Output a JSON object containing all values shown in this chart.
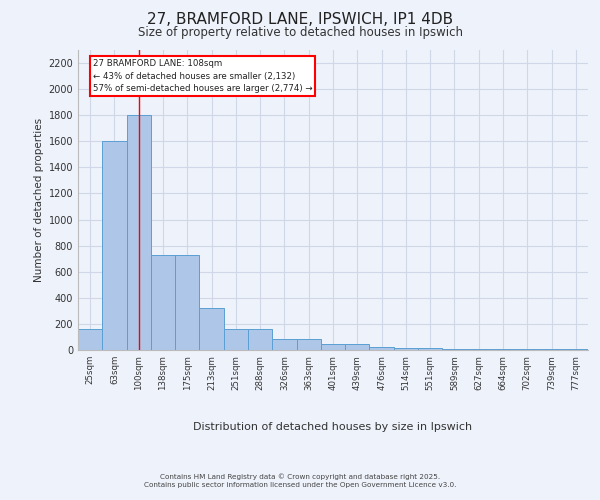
{
  "title": "27, BRAMFORD LANE, IPSWICH, IP1 4DB",
  "subtitle": "Size of property relative to detached houses in Ipswich",
  "xlabel": "Distribution of detached houses by size in Ipswich",
  "ylabel": "Number of detached properties",
  "categories": [
    "25sqm",
    "63sqm",
    "100sqm",
    "138sqm",
    "175sqm",
    "213sqm",
    "251sqm",
    "288sqm",
    "326sqm",
    "363sqm",
    "401sqm",
    "439sqm",
    "476sqm",
    "514sqm",
    "551sqm",
    "589sqm",
    "627sqm",
    "664sqm",
    "702sqm",
    "739sqm",
    "777sqm"
  ],
  "values": [
    160,
    1600,
    1800,
    730,
    730,
    320,
    160,
    160,
    85,
    85,
    45,
    45,
    25,
    15,
    15,
    10,
    10,
    5,
    5,
    5,
    5
  ],
  "bar_color": "#aec6e8",
  "bar_edge_color": "#5a9fd4",
  "grid_color": "#d0d8e8",
  "background_color": "#eef2fb",
  "vline_x": 2,
  "vline_color": "red",
  "annotation_text": "27 BRAMFORD LANE: 108sqm\n← 43% of detached houses are smaller (2,132)\n57% of semi-detached houses are larger (2,774) →",
  "annotation_box_color": "red",
  "ylim": [
    0,
    2300
  ],
  "yticks": [
    0,
    200,
    400,
    600,
    800,
    1000,
    1200,
    1400,
    1600,
    1800,
    2000,
    2200
  ],
  "footer_line1": "Contains HM Land Registry data © Crown copyright and database right 2025.",
  "footer_line2": "Contains public sector information licensed under the Open Government Licence v3.0."
}
